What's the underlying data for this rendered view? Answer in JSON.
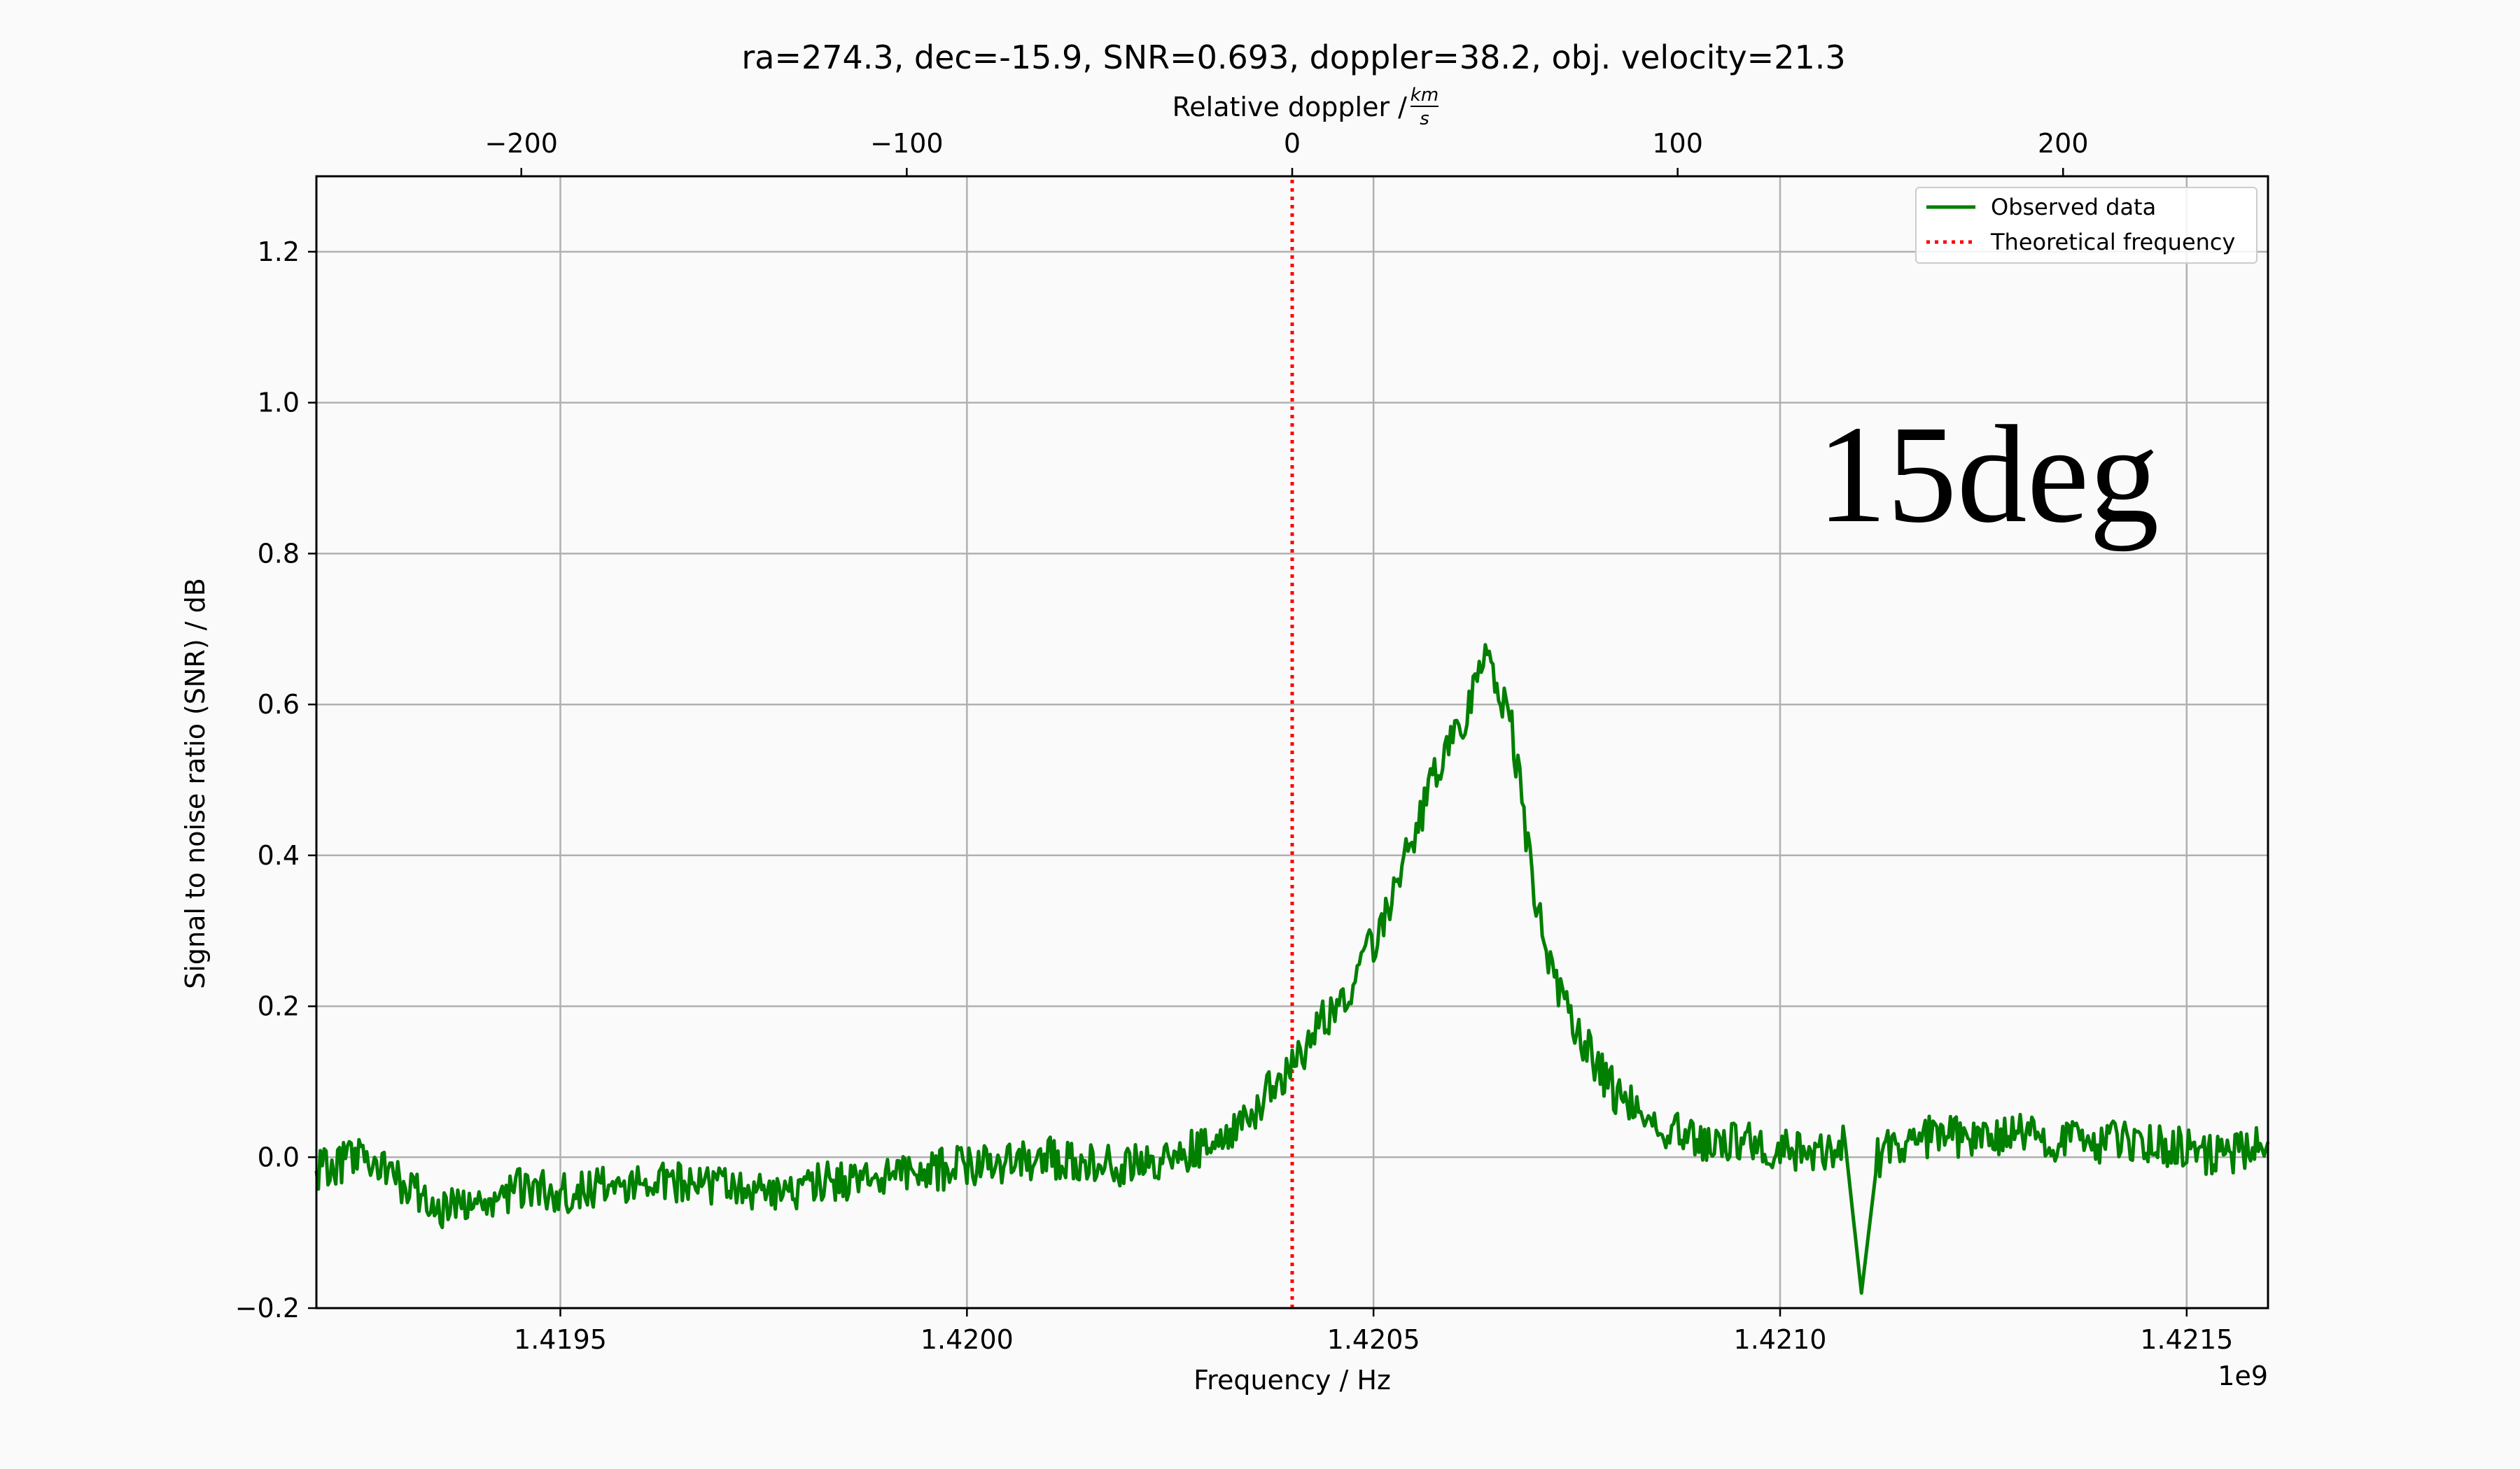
{
  "colors": {
    "background": "#fafafa",
    "observed": "#007f00",
    "theoretical": "#ff0000",
    "grid": "#b0b0b0",
    "axes": "#000000"
  },
  "chart_data": {
    "type": "line",
    "title": "ra=274.3, dec=-15.9, SNR=0.693, doppler=38.2, obj. velocity=21.3",
    "xlabel": "Frequency / Hz",
    "ylabel": "Signal to noise ratio (SNR) / dB",
    "x_offset_label": "1e9",
    "top_axis_label": "Relative doppler / ",
    "top_axis_unit_numerator": "km",
    "top_axis_unit_denominator": "s",
    "annotation": "15deg",
    "xlim": [
      1.4192,
      1.4216
    ],
    "ylim": [
      -0.2,
      1.3
    ],
    "x_ticks": [
      1.4195,
      1.42,
      1.4205,
      1.421,
      1.4215
    ],
    "x_tick_labels": [
      "1.4195",
      "1.4200",
      "1.4205",
      "1.4210",
      "1.4215"
    ],
    "y_ticks": [
      -0.2,
      0.0,
      0.2,
      0.4,
      0.6,
      0.8,
      1.0,
      1.2
    ],
    "y_tick_labels": [
      "−0.2",
      "0.0",
      "0.2",
      "0.4",
      "0.6",
      "0.8",
      "1.0",
      "1.2"
    ],
    "top_ticks": [
      -200,
      -100,
      0,
      100,
      200
    ],
    "top_tick_labels": [
      "−200",
      "−100",
      "0",
      "100",
      "200"
    ],
    "top_axis_zero_x": 1.4204,
    "top_axis_x_per_unit": 4.74e-06,
    "grid": true,
    "legend_position": "top-right",
    "series": [
      {
        "name": "Observed data",
        "style": "solid",
        "x": [
          1.4192,
          1.41925,
          1.4193,
          1.41935,
          1.4194,
          1.41945,
          1.4195,
          1.41955,
          1.4196,
          1.41965,
          1.4197,
          1.41975,
          1.4198,
          1.41985,
          1.4199,
          1.41995,
          1.42,
          1.42005,
          1.4201,
          1.42015,
          1.4202,
          1.42025,
          1.4203,
          1.42035,
          1.4204,
          1.42043,
          1.42046,
          1.42049,
          1.42052,
          1.42055,
          1.42058,
          1.42061,
          1.42064,
          1.42067,
          1.4207,
          1.42073,
          1.42076,
          1.4208,
          1.42085,
          1.4209,
          1.42095,
          1.421,
          1.42105,
          1.42108,
          1.4211,
          1.42112,
          1.42115,
          1.4212,
          1.42125,
          1.4213,
          1.42135,
          1.4214,
          1.42145,
          1.4215,
          1.42155,
          1.4216
        ],
        "y": [
          -0.02,
          0.0,
          -0.03,
          -0.07,
          -0.06,
          -0.04,
          -0.05,
          -0.04,
          -0.04,
          -0.03,
          -0.04,
          -0.05,
          -0.04,
          -0.03,
          -0.03,
          -0.02,
          -0.01,
          -0.01,
          0.0,
          -0.01,
          -0.01,
          0.0,
          0.02,
          0.06,
          0.12,
          0.17,
          0.21,
          0.26,
          0.34,
          0.43,
          0.52,
          0.58,
          0.67,
          0.57,
          0.33,
          0.21,
          0.15,
          0.08,
          0.04,
          0.02,
          0.02,
          0.01,
          0.01,
          0.02,
          -0.18,
          0.0,
          0.02,
          0.03,
          0.02,
          0.03,
          0.02,
          0.02,
          0.02,
          0.01,
          0.0,
          0.02
        ]
      },
      {
        "name": "Theoretical frequency",
        "style": "dotted",
        "x": [
          1.4204,
          1.4204
        ],
        "y": [
          -0.2,
          1.3
        ]
      }
    ]
  }
}
